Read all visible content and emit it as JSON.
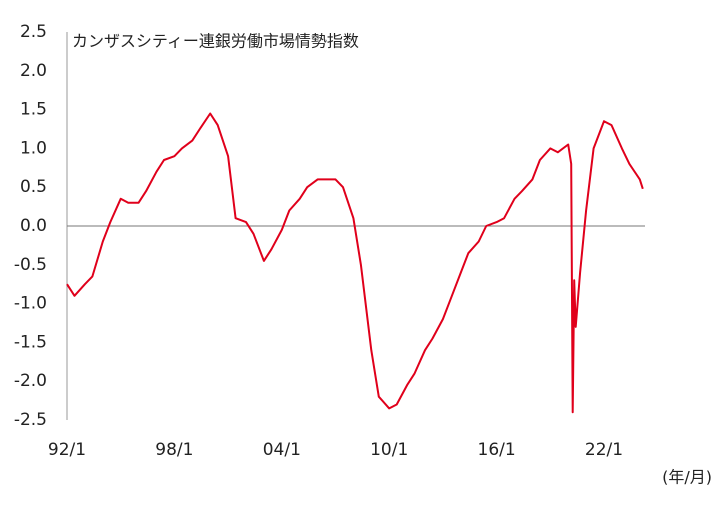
{
  "chart_data": {
    "type": "line",
    "title": "カンザスシティー連銀労働市場情勢指数",
    "xlabel": "(年/月)",
    "x": [
      "92/1",
      "92/6",
      "93/1",
      "93/6",
      "94/1",
      "94/6",
      "95/1",
      "95/6",
      "96/1",
      "96/6",
      "97/1",
      "97/6",
      "98/1",
      "98/6",
      "99/1",
      "99/6",
      "00/1",
      "00/6",
      "01/1",
      "01/6",
      "02/1",
      "02/6",
      "03/1",
      "03/6",
      "04/1",
      "04/6",
      "05/1",
      "05/6",
      "06/1",
      "06/6",
      "07/1",
      "07/6",
      "08/1",
      "08/6",
      "09/1",
      "09/6",
      "10/1",
      "10/6",
      "11/1",
      "11/6",
      "12/1",
      "12/6",
      "13/1",
      "13/6",
      "14/1",
      "14/6",
      "15/1",
      "15/6",
      "16/1",
      "16/6",
      "17/1",
      "17/6",
      "18/1",
      "18/6",
      "19/1",
      "19/6",
      "20/1",
      "20/3",
      "20/4",
      "20/5",
      "20/6",
      "20/9",
      "21/1",
      "21/6",
      "22/1",
      "22/6",
      "23/1",
      "23/6",
      "24/1",
      "24/3"
    ],
    "values": [
      -0.75,
      -0.9,
      -0.75,
      -0.65,
      -0.2,
      0.05,
      0.35,
      0.3,
      0.3,
      0.45,
      0.7,
      0.85,
      0.9,
      1.0,
      1.1,
      1.25,
      1.45,
      1.3,
      0.9,
      0.1,
      0.05,
      -0.1,
      -0.45,
      -0.3,
      -0.05,
      0.2,
      0.35,
      0.5,
      0.6,
      0.6,
      0.6,
      0.5,
      0.1,
      -0.5,
      -1.6,
      -2.2,
      -2.35,
      -2.3,
      -2.05,
      -1.9,
      -1.6,
      -1.45,
      -1.2,
      -0.95,
      -0.6,
      -0.35,
      -0.2,
      0.0,
      0.05,
      0.1,
      0.35,
      0.45,
      0.6,
      0.85,
      1.0,
      0.95,
      1.05,
      0.8,
      -2.4,
      -0.7,
      -1.3,
      -0.6,
      0.2,
      1.0,
      1.35,
      1.3,
      1.0,
      0.8,
      0.6,
      0.48
    ],
    "color": "#e0001b",
    "xticks": [
      "92/1",
      "98/1",
      "04/1",
      "10/1",
      "16/1",
      "22/1"
    ],
    "ylim": [
      -2.5,
      2.5
    ],
    "yticks": [
      {
        "value": 2.5,
        "label": "2.5"
      },
      {
        "value": 2,
        "label": "2.0"
      },
      1.5,
      {
        "value": 1,
        "label": "1.0"
      },
      0.5,
      {
        "value": 0,
        "label": "0.0"
      },
      -0.5,
      {
        "value": -1,
        "label": "-1.0"
      },
      -1.5,
      {
        "value": -2,
        "label": "-2.0"
      },
      -2.5
    ]
  }
}
